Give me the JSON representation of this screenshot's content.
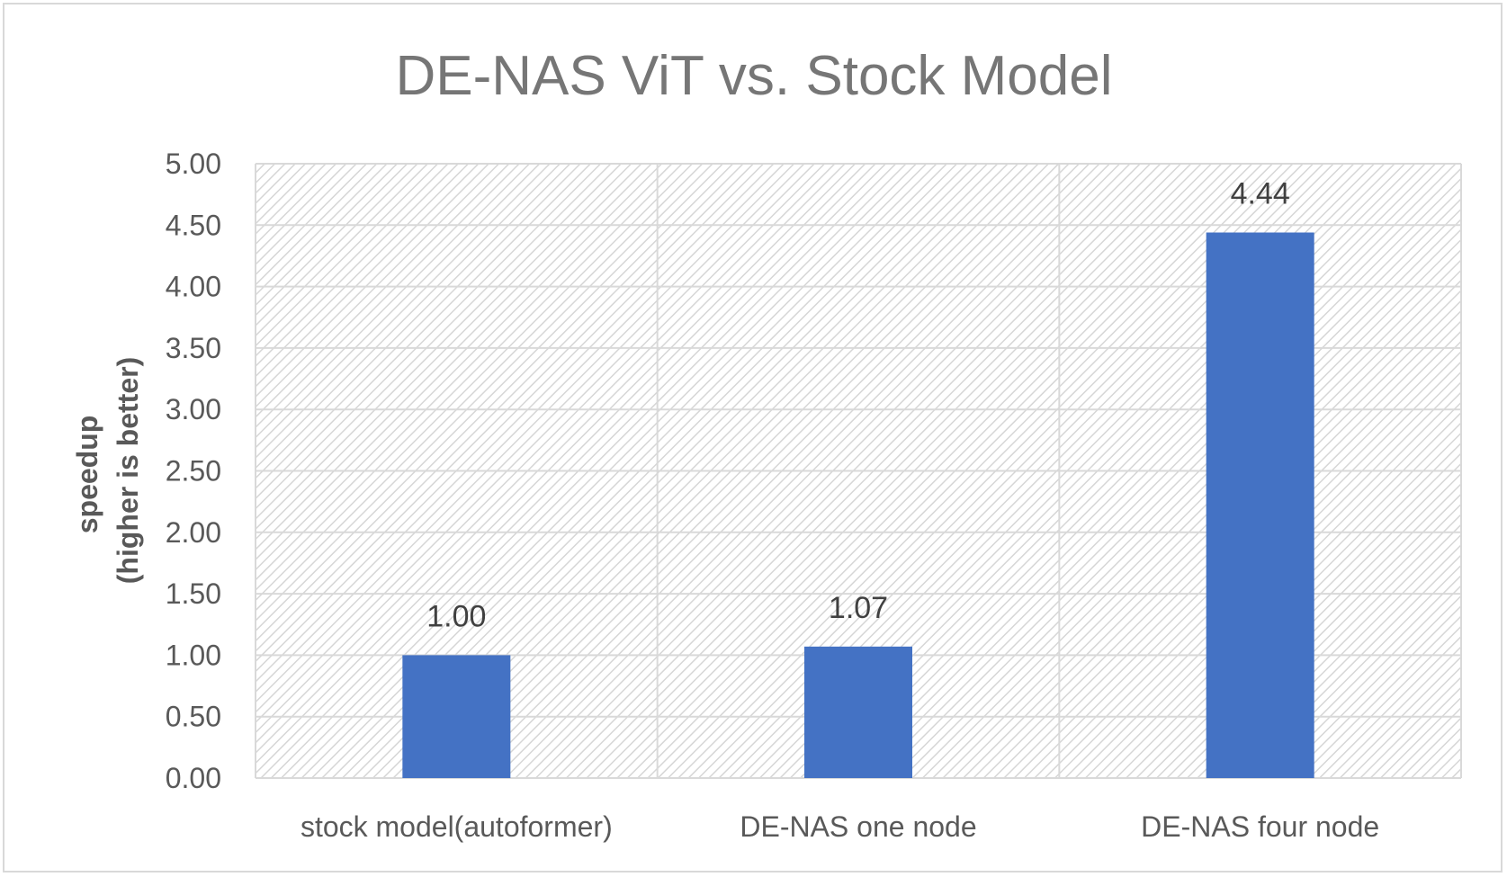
{
  "chart_data": {
    "type": "bar",
    "title": "DE-NAS ViT vs. Stock Model",
    "xlabel": "",
    "ylabel_lines": [
      "speedup",
      "(higher is better)"
    ],
    "categories": [
      "stock model(autoformer)",
      "DE-NAS one node",
      "DE-NAS four node"
    ],
    "values": [
      1.0,
      1.07,
      4.44
    ],
    "data_labels": [
      "1.00",
      "1.07",
      "4.44"
    ],
    "ylim": [
      0,
      5
    ],
    "ytick_step": 0.5,
    "ytick_labels": [
      "0.00",
      "0.50",
      "1.00",
      "1.50",
      "2.00",
      "2.50",
      "3.00",
      "3.50",
      "4.00",
      "4.50",
      "5.00"
    ],
    "grid": true,
    "legend": "none",
    "bar_color": "#4472C4",
    "gridline_color": "#d9d9d9",
    "plot_pattern": "diagonal-hatch"
  }
}
